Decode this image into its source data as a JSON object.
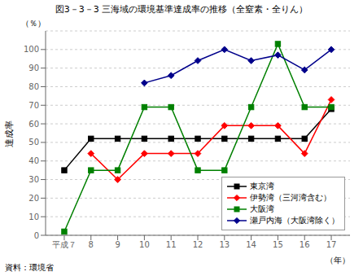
{
  "chart_data": {
    "type": "line",
    "title": "図3－3－3 三海域の環境基準達成率の推移（全窒素・全りん）",
    "ylabel": "達成率",
    "y_unit": "（％）",
    "xlabel": "（年）",
    "source": "資料：環境省",
    "x": [
      7,
      8,
      9,
      10,
      11,
      12,
      13,
      14,
      15,
      16,
      17
    ],
    "xlim": [
      6.3,
      17.7
    ],
    "xticks": [
      {
        "value": 7,
        "label": "平成７"
      },
      8,
      9,
      10,
      11,
      12,
      13,
      14,
      15,
      16,
      17
    ],
    "ylim": [
      0,
      110
    ],
    "yticks": [
      0,
      10,
      20,
      30,
      40,
      50,
      60,
      70,
      80,
      90,
      100
    ],
    "grid": "y",
    "legend": "lower right",
    "series": [
      {
        "name": "東京湾",
        "color": "#000000",
        "marker": "square",
        "values": [
          35,
          52,
          52,
          52,
          52,
          52,
          52,
          52,
          52,
          52,
          68
        ]
      },
      {
        "name": "伊勢湾（三河湾含む）",
        "color": "#ff0000",
        "marker": "diamond",
        "values": [
          null,
          44,
          30,
          44,
          44,
          44,
          59,
          59,
          59,
          44,
          73
        ]
      },
      {
        "name": "大阪湾",
        "color": "#008000",
        "marker": "square",
        "values": [
          2,
          35,
          35,
          69,
          69,
          35,
          35,
          69,
          103,
          69,
          69
        ]
      },
      {
        "name": "瀬戸内海（大阪湾除く）",
        "color": "#00008b",
        "marker": "diamond",
        "values": [
          null,
          null,
          null,
          82,
          86,
          94,
          100,
          94,
          97,
          89,
          100
        ]
      }
    ]
  }
}
